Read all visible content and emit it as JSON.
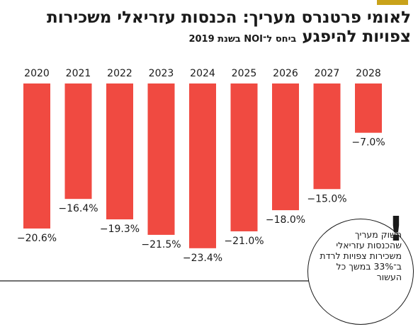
{
  "title": {
    "main": "לאומי פרטנרס מעריך: הכנסות עזריאלי משכירות צפויות להיפגע",
    "subtitle": "ביחס ל־NOI בשנת 2019"
  },
  "callout": {
    "text": "השוק מעריך שהכנסות עזריאלי משכירות צפויות לרדת ב־33% במשך כל העשור",
    "mark": "!"
  },
  "colors": {
    "bar": "#f04a41",
    "accent": "#c9a21a",
    "text": "#1a1a1a"
  },
  "chart_data": {
    "type": "bar",
    "title": "לאומי פרטנרס מעריך: הכנסות עזריאלי משכירות צפויות להיפגע",
    "subtitle": "ביחס ל־NOI בשנת 2019",
    "categories": [
      "2020",
      "2021",
      "2022",
      "2023",
      "2024",
      "2025",
      "2026",
      "2027",
      "2028"
    ],
    "values": [
      -20.6,
      -16.4,
      -19.3,
      -21.5,
      -23.4,
      -21.0,
      -18.0,
      -15.0,
      -7.0
    ],
    "labels": [
      "−20.6%",
      "−16.4%",
      "−19.3%",
      "−21.5%",
      "−23.4%",
      "−21.0%",
      "−18.0%",
      "−15.0%",
      "−7.0%"
    ],
    "unit": "%",
    "grid": false,
    "legend": "none"
  }
}
